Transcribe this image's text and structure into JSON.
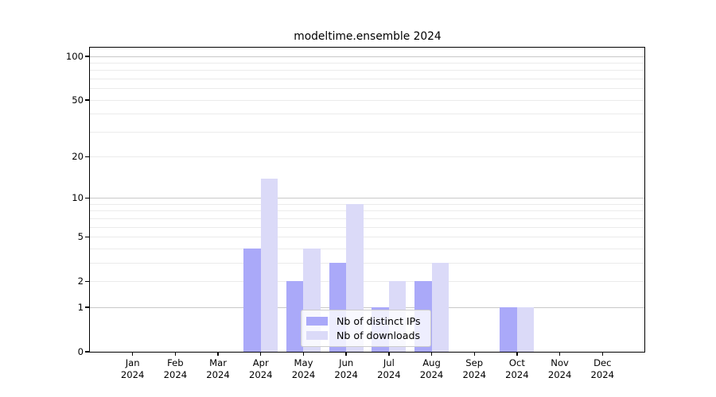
{
  "chart_data": {
    "type": "bar",
    "title": "modeltime.ensemble 2024",
    "categories": [
      "Jan",
      "Feb",
      "Mar",
      "Apr",
      "May",
      "Jun",
      "Jul",
      "Aug",
      "Sep",
      "Oct",
      "Nov",
      "Dec"
    ],
    "x_year_label": "2024",
    "series": [
      {
        "name": "Nb of distinct IPs",
        "color": "#aaa9f9",
        "values": [
          0,
          0,
          0,
          4,
          2,
          3,
          1,
          2,
          0,
          1,
          0,
          0
        ]
      },
      {
        "name": "Nb of downloads",
        "color": "#dbdaf8",
        "values": [
          0,
          0,
          0,
          14,
          4,
          9,
          2,
          3,
          0,
          1,
          0,
          0
        ]
      }
    ],
    "y_axis": {
      "scale": "log1p",
      "tick_labels": [
        "100",
        "50",
        "20",
        "10",
        "5",
        "2",
        "1",
        "0"
      ],
      "tick_values": [
        100,
        50,
        20,
        10,
        5,
        2,
        1,
        0
      ],
      "major_gridlines": [
        1,
        10,
        100
      ],
      "minor_gridlines": [
        2,
        3,
        4,
        5,
        6,
        7,
        8,
        9,
        20,
        30,
        40,
        50,
        60,
        70,
        80,
        90
      ],
      "ylim": [
        0,
        115
      ]
    },
    "legend": {
      "position": "lower-center-inside",
      "entries": [
        "Nb of distinct IPs",
        "Nb of downloads"
      ]
    },
    "colors": {
      "grid_major": "#c9c9c9",
      "grid_minor": "#ebebeb",
      "axis": "#000000",
      "background": "#ffffff"
    }
  }
}
